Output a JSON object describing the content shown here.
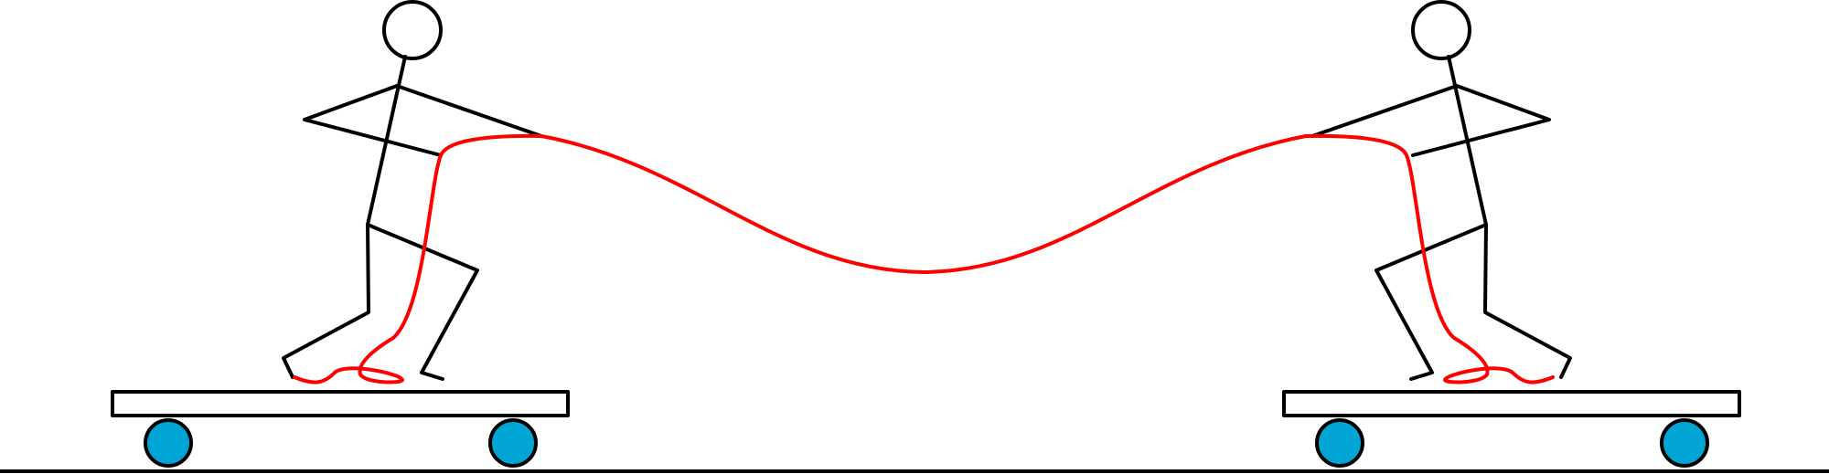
{
  "colors": {
    "outline": "#000000",
    "rope": "#ff0000",
    "wheel": "#00a5d6",
    "background": "#ffffff"
  }
}
